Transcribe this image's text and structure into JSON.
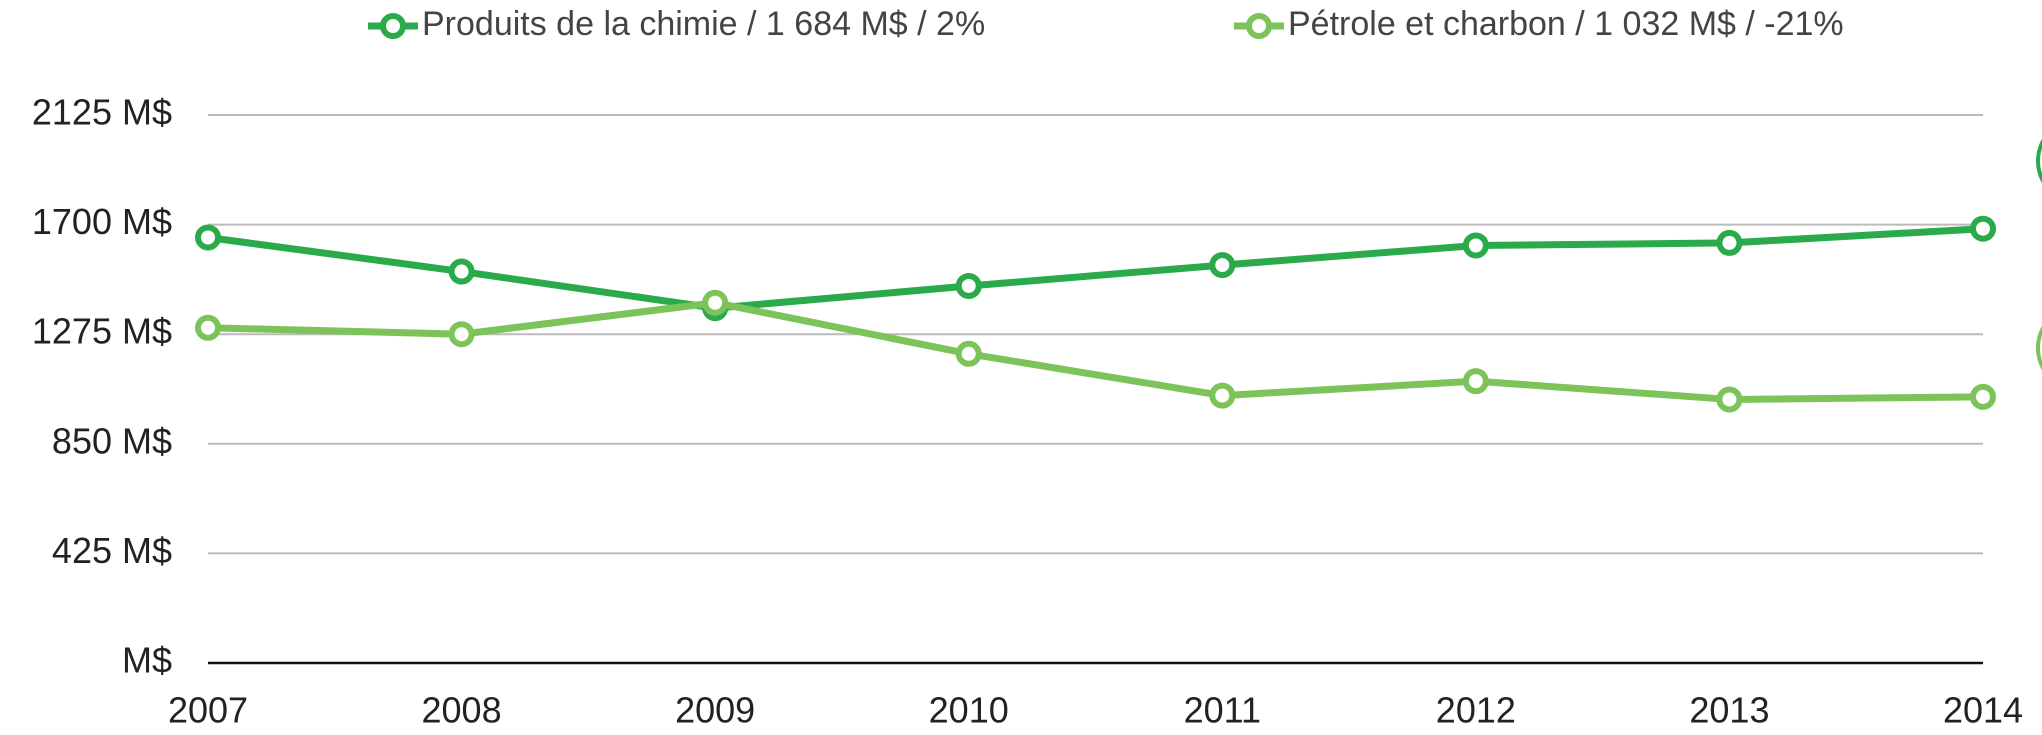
{
  "chart_data": {
    "type": "line",
    "categories": [
      "2007",
      "2008",
      "2009",
      "2010",
      "2011",
      "2012",
      "2013",
      "2014"
    ],
    "series": [
      {
        "name": "Produits de la chimie / 1 684 M$ / 2%",
        "color": "#2aaa4a",
        "values": [
          1650,
          1518,
          1376,
          1462,
          1543,
          1619,
          1629,
          1684
        ]
      },
      {
        "name": "Pétrole et charbon / 1 032 M$ / -21%",
        "color": "#7cc35a",
        "values": [
          1300,
          1275,
          1397,
          1199,
          1037,
          1093,
          1022,
          1032
        ]
      }
    ],
    "ylim": [
      0,
      2125
    ],
    "yticks": [
      {
        "value": 0,
        "label": "M$"
      },
      {
        "value": 425,
        "label": "425 M$"
      },
      {
        "value": 850,
        "label": "850 M$"
      },
      {
        "value": 1275,
        "label": "1275 M$"
      },
      {
        "value": 1700,
        "label": "1700 M$"
      },
      {
        "value": 2125,
        "label": "2125 M$"
      }
    ],
    "grid": true
  }
}
